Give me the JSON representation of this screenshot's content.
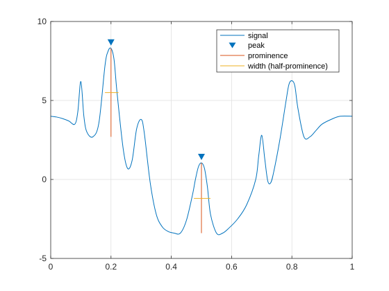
{
  "chart_data": {
    "type": "line",
    "xlim": [
      0,
      1
    ],
    "ylim": [
      -5,
      10
    ],
    "grid": true,
    "legend_position": "top-right",
    "x_tick_labels": [
      "0",
      "0.2",
      "0.4",
      "0.6",
      "0.8",
      "1"
    ],
    "y_tick_labels": [
      "-5",
      "0",
      "5",
      "10"
    ],
    "series": [
      {
        "name": "signal",
        "color": "#0072BD",
        "x": [
          0,
          0.02,
          0.04,
          0.06,
          0.08,
          0.09,
          0.1,
          0.11,
          0.12,
          0.14,
          0.16,
          0.18,
          0.19,
          0.2,
          0.21,
          0.22,
          0.24,
          0.255,
          0.27,
          0.285,
          0.3,
          0.31,
          0.33,
          0.35,
          0.37,
          0.39,
          0.41,
          0.43,
          0.45,
          0.47,
          0.48,
          0.49,
          0.5,
          0.51,
          0.52,
          0.53,
          0.55,
          0.57,
          0.59,
          0.62,
          0.65,
          0.68,
          0.69,
          0.7,
          0.71,
          0.72,
          0.73,
          0.74,
          0.76,
          0.78,
          0.79,
          0.8,
          0.81,
          0.82,
          0.84,
          0.86,
          0.88,
          0.9,
          0.93,
          0.96,
          1.0
        ],
        "y": [
          4.0,
          3.95,
          3.85,
          3.7,
          3.5,
          4.3,
          6.2,
          4.0,
          3.0,
          2.7,
          3.6,
          7.2,
          8.1,
          8.3,
          7.6,
          5.5,
          2.0,
          0.7,
          1.2,
          3.2,
          3.8,
          3.0,
          -0.2,
          -2.2,
          -3.0,
          -3.3,
          -3.4,
          -3.4,
          -2.6,
          -1.0,
          0.0,
          0.8,
          1.05,
          0.7,
          -0.5,
          -2.2,
          -3.4,
          -3.4,
          -3.1,
          -2.5,
          -1.6,
          0.0,
          1.5,
          2.8,
          1.3,
          -0.1,
          -0.2,
          0.5,
          2.5,
          4.9,
          6.0,
          6.25,
          5.9,
          4.5,
          2.7,
          2.7,
          3.1,
          3.5,
          3.8,
          4.0,
          4.0
        ]
      },
      {
        "name": "peak",
        "color": "#0072BD",
        "marker": "down-triangle",
        "x": [
          0.2,
          0.5
        ],
        "y": [
          8.3,
          1.05
        ]
      },
      {
        "name": "prominence",
        "color": "#D95319",
        "segments": [
          {
            "x": 0.2,
            "y0": 2.7,
            "y1": 8.3
          },
          {
            "x": 0.5,
            "y0": -3.4,
            "y1": 1.05
          }
        ]
      },
      {
        "name": "width (half-prominence)",
        "color": "#EDB120",
        "segments": [
          {
            "y": 5.5,
            "x0": 0.18,
            "x1": 0.225
          },
          {
            "y": -1.2,
            "x0": 0.475,
            "x1": 0.53
          }
        ]
      }
    ]
  }
}
